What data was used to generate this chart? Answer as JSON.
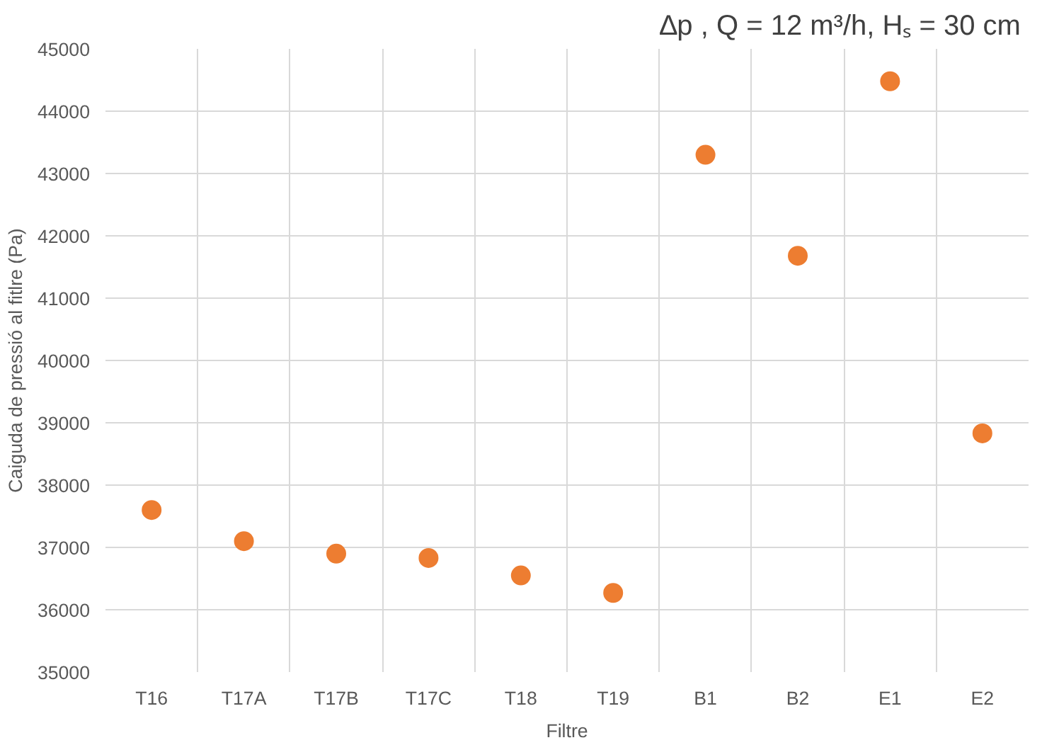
{
  "chart_data": {
    "type": "scatter",
    "title": "∆p , Q = 12 m³/h,  Hₛ = 30 cm",
    "xlabel": "Filtre",
    "ylabel": "Caiguda de pressió al fitlre (Pa)",
    "categories": [
      "T16",
      "T17A",
      "T17B",
      "T17C",
      "T18",
      "T19",
      "B1",
      "B2",
      "E1",
      "E2"
    ],
    "series": [
      {
        "color": "#ed7d31",
        "values": [
          37600,
          37100,
          36900,
          36830,
          36550,
          36270,
          43300,
          41680,
          44480,
          38830
        ]
      }
    ],
    "ylim": [
      35000,
      45000
    ],
    "yticks": [
      35000,
      36000,
      37000,
      38000,
      39000,
      40000,
      41000,
      42000,
      43000,
      44000,
      45000
    ],
    "grid": true,
    "marker": "circle"
  }
}
